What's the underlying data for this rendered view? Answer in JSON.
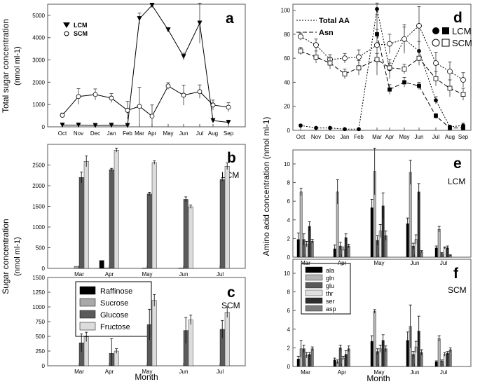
{
  "chart_data": [
    {
      "panel": "a",
      "type": "line",
      "ylabel": "Total sugar concentration (nmol ml-1)",
      "ylim": [
        0,
        5500
      ],
      "yticks": [
        0,
        1000,
        2000,
        3000,
        4000,
        5000
      ],
      "categories": [
        "Oct",
        "Nov",
        "Dec",
        "Jan",
        "Feb",
        "Mar",
        "Apr",
        "May",
        "Jun",
        "Jul",
        "Aug",
        "Sep"
      ],
      "series": [
        {
          "name": "LCM",
          "marker": "triangle-down-filled",
          "values": [
            80,
            80,
            60,
            70,
            60,
            4850,
            5450,
            4350,
            3150,
            4650,
            280,
            200
          ],
          "errors": [
            30,
            30,
            20,
            20,
            20,
            250,
            100,
            100,
            150,
            900,
            50,
            40
          ]
        },
        {
          "name": "SCM",
          "marker": "circle-open",
          "values": [
            520,
            1360,
            1450,
            1290,
            740,
            920,
            480,
            1830,
            1420,
            1580,
            980,
            880
          ],
          "errors": [
            100,
            350,
            250,
            200,
            400,
            850,
            500,
            150,
            450,
            300,
            220,
            200
          ]
        }
      ]
    },
    {
      "panel": "b",
      "type": "bar",
      "annotation": "LCM",
      "ylim": [
        0,
        3000
      ],
      "yticks": [
        0,
        500,
        1000,
        1500,
        2000,
        2500
      ],
      "categories": [
        "Mar",
        "Apr",
        "May",
        "Jun",
        "Jul"
      ],
      "series": [
        {
          "name": "Raffinose",
          "values": [
            0,
            190,
            0,
            0,
            0
          ],
          "errors": [
            0,
            0,
            0,
            0,
            0
          ]
        },
        {
          "name": "Sucrose",
          "values": [
            50,
            10,
            10,
            10,
            0
          ],
          "errors": [
            0,
            0,
            0,
            0,
            0
          ]
        },
        {
          "name": "Glucose",
          "values": [
            2200,
            2390,
            1800,
            1670,
            2150
          ],
          "errors": [
            130,
            30,
            40,
            60,
            40
          ]
        },
        {
          "name": "Fructose",
          "values": [
            2590,
            2860,
            2560,
            1490,
            2470
          ],
          "errors": [
            130,
            50,
            40,
            40,
            80
          ]
        }
      ]
    },
    {
      "panel": "c",
      "type": "bar",
      "annotation": "SCM",
      "xlabel": "Month",
      "ylim": [
        0,
        1500
      ],
      "yticks": [
        0,
        250,
        500,
        750,
        1000,
        1250,
        1500
      ],
      "categories": [
        "Mar",
        "Apr",
        "May",
        "Jun",
        "Jul"
      ],
      "series": [
        {
          "name": "Raffinose",
          "values": [
            0,
            0,
            0,
            0,
            0
          ],
          "errors": [
            0,
            0,
            0,
            0,
            0
          ]
        },
        {
          "name": "Sucrose",
          "values": [
            0,
            0,
            0,
            0,
            0
          ],
          "errors": [
            0,
            0,
            0,
            0,
            0
          ]
        },
        {
          "name": "Glucose",
          "values": [
            390,
            210,
            700,
            600,
            620
          ],
          "errors": [
            150,
            250,
            260,
            220,
            150
          ]
        },
        {
          "name": "Fructose",
          "values": [
            490,
            250,
            1110,
            780,
            910
          ],
          "errors": [
            80,
            40,
            100,
            80,
            90
          ]
        }
      ]
    },
    {
      "panel": "d",
      "type": "line",
      "ylabel": "Amino acid concentration (nmol ml-1)",
      "ylim": [
        0,
        105
      ],
      "yticks": [
        0,
        20,
        40,
        60,
        80,
        100
      ],
      "categories": [
        "Oct",
        "Nov",
        "Dec",
        "Jan",
        "Feb",
        "Mar",
        "Apr",
        "May",
        "Jun",
        "Jul",
        "Aug",
        "Sep"
      ],
      "legend_lines": [
        "Total AA",
        "Asn"
      ],
      "series": [
        {
          "name": "LCM Total AA",
          "marker": "circle-filled",
          "dash": "short",
          "values": [
            4,
            2,
            2,
            1,
            1,
            101,
            51,
            76,
            66,
            25,
            3,
            4
          ],
          "errors": [
            1,
            0.5,
            0.5,
            0.5,
            0.5,
            5,
            8,
            12,
            8,
            3,
            1,
            2
          ]
        },
        {
          "name": "SCM Total AA",
          "marker": "circle-open",
          "dash": "short",
          "values": [
            78,
            71,
            59,
            60,
            61,
            71,
            72,
            76,
            87,
            56,
            49,
            42
          ],
          "errors": [
            3,
            5,
            4,
            4,
            6,
            25,
            8,
            10,
            16,
            9,
            8,
            6
          ]
        },
        {
          "name": "LCM Asn",
          "marker": "square-filled",
          "dash": "long",
          "values": [
            0,
            0,
            0,
            0,
            0,
            80,
            34,
            40,
            37,
            12,
            2,
            2
          ],
          "errors": [
            0,
            0,
            0,
            0,
            0,
            4,
            4,
            4,
            3,
            2,
            1,
            1
          ]
        },
        {
          "name": "SCM Asn",
          "marker": "square-open",
          "dash": "long",
          "values": [
            66,
            61,
            56,
            47,
            52,
            59,
            52,
            51,
            60,
            43,
            35,
            30
          ],
          "errors": [
            3,
            5,
            5,
            4,
            6,
            5,
            4,
            4,
            6,
            6,
            7,
            5
          ]
        }
      ]
    },
    {
      "panel": "e",
      "type": "bar",
      "annotation": "LCM",
      "ylim": [
        0,
        11.5
      ],
      "yticks": [
        0,
        2,
        4,
        6,
        8,
        10
      ],
      "categories": [
        "Mar",
        "Apr",
        "May",
        "Jun",
        "Jul"
      ],
      "series": [
        {
          "name": "ala",
          "values": [
            1.9,
            0.9,
            5.3,
            3.6,
            1.0
          ],
          "errors": [
            0.7,
            0.4,
            0.9,
            0.6,
            0.2
          ]
        },
        {
          "name": "gln",
          "values": [
            7.0,
            7.0,
            9.2,
            9.1,
            3.0
          ],
          "errors": [
            0.4,
            1.3,
            2.5,
            1.3,
            0.3
          ]
        },
        {
          "name": "glu",
          "values": [
            1.9,
            1.2,
            1.8,
            1.2,
            0.4
          ],
          "errors": [
            0.6,
            0.4,
            0.5,
            0.3,
            0.1
          ]
        },
        {
          "name": "thr",
          "values": [
            1.4,
            0.9,
            2.8,
            1.9,
            1.0
          ],
          "errors": [
            0.3,
            0.2,
            0.7,
            0.5,
            0.1
          ]
        },
        {
          "name": "ser",
          "values": [
            3.3,
            2.1,
            5.5,
            7.0,
            1.0
          ],
          "errors": [
            0.5,
            0.4,
            1.4,
            0.9,
            0.2
          ]
        },
        {
          "name": "asp",
          "values": [
            1.7,
            1.2,
            2.3,
            0.6,
            0.2
          ],
          "errors": [
            0.2,
            0.2,
            0.5,
            0.1,
            0.05
          ]
        }
      ]
    },
    {
      "panel": "f",
      "type": "bar",
      "annotation": "SCM",
      "xlabel": "Month",
      "ylim": [
        0,
        11.5
      ],
      "yticks": [
        0,
        2,
        4,
        6,
        8,
        10
      ],
      "categories": [
        "Mar",
        "Apr",
        "May",
        "Jun",
        "Jul"
      ],
      "series": [
        {
          "name": "ala",
          "values": [
            0.8,
            0.7,
            2.7,
            2.8,
            0.5
          ],
          "errors": [
            0.3,
            0.2,
            0.6,
            0.9,
            0.1
          ]
        },
        {
          "name": "gln",
          "values": [
            1.9,
            0.5,
            5.9,
            4.3,
            3.0
          ],
          "errors": [
            0.9,
            0.2,
            0.2,
            2.3,
            0.3
          ]
        },
        {
          "name": "glu",
          "values": [
            1.9,
            2.0,
            1.6,
            1.3,
            0.6
          ],
          "errors": [
            0.4,
            0.3,
            0.3,
            0.3,
            0.1
          ]
        },
        {
          "name": "thr",
          "values": [
            1.2,
            0.9,
            1.9,
            2.1,
            1.3
          ],
          "errors": [
            0.3,
            0.2,
            0.4,
            0.6,
            0.2
          ]
        },
        {
          "name": "ser",
          "values": [
            1.3,
            1.3,
            2.8,
            3.8,
            1.4
          ],
          "errors": [
            0.2,
            0.4,
            0.6,
            1.6,
            0.2
          ]
        },
        {
          "name": "asp",
          "values": [
            1.9,
            1.9,
            1.9,
            1.5,
            1.8
          ],
          "errors": [
            0.2,
            0.3,
            0.3,
            0.3,
            0.2
          ]
        }
      ]
    }
  ],
  "labels": {
    "a_letter": "a",
    "b_letter": "b",
    "c_letter": "c",
    "d_letter": "d",
    "e_letter": "e",
    "f_letter": "f",
    "sugar_ylabel": "Sugar concentration",
    "sugar_yunit": "(nmol ml-1)",
    "total_sugar_ylabel": "Total sugar concentration",
    "total_sugar_yunit": "(nmol ml-1)",
    "aa_ylabel": "Amino acid concentration (nmol ml-1)",
    "a_legend_lcm": "LCM",
    "a_legend_scm": "SCM",
    "d_legend_total": "Total AA",
    "d_legend_asn": "Asn",
    "d_legend_lcm": "LCM",
    "d_legend_scm": "SCM",
    "c_legend": [
      "Raffinose",
      "Sucrose",
      "Glucose",
      "Fructose"
    ],
    "f_legend": [
      "ala",
      "gln",
      "glu",
      "thr",
      "ser",
      "asp"
    ]
  },
  "colors": {
    "raffinose": "#000000",
    "sucrose": "#a8a8a8",
    "glucose": "#5a5a5a",
    "fructose": "#dcdcdc",
    "ala": "#000000",
    "gln": "#b4b4b4",
    "glu": "#5a5a5a",
    "thr": "#e0e0e0",
    "ser": "#2e2e2e",
    "asp": "#7c7c7c"
  }
}
